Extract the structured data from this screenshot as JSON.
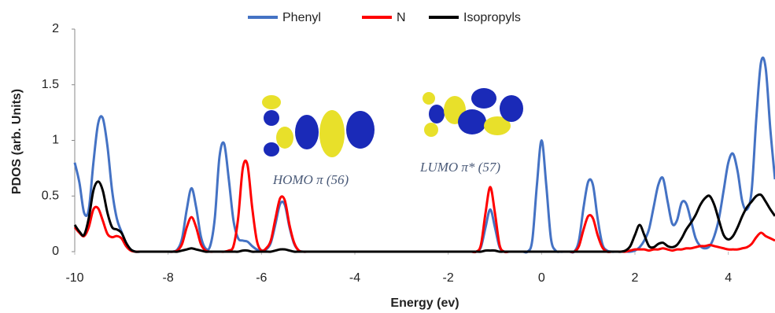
{
  "chart_data": {
    "type": "line",
    "x_label": "Energy (ev)",
    "y_label": "PDOS (arb. Units)",
    "annotations": [
      "HOMO π (56)",
      "LUMO π* (57)"
    ],
    "xlim": [
      -10,
      5
    ],
    "xticks": [
      -10,
      -8,
      -6,
      -4,
      -2,
      0,
      2,
      4
    ],
    "ylim": [
      0,
      2
    ],
    "yticks": [
      0,
      0.5,
      1,
      1.5,
      2
    ],
    "legend": "top",
    "x": [
      -10,
      -9.9,
      -9.8,
      -9.7,
      -9.6,
      -9.5,
      -9.4,
      -9.3,
      -9.2,
      -9.1,
      -9,
      -8.9,
      -8.8,
      -8.7,
      -8.6,
      -8.5,
      -8.4,
      -8.3,
      -8.2,
      -8.1,
      -8,
      -7.9,
      -7.8,
      -7.7,
      -7.6,
      -7.5,
      -7.4,
      -7.3,
      -7.2,
      -7.1,
      -7,
      -6.9,
      -6.8,
      -6.7,
      -6.6,
      -6.5,
      -6.4,
      -6.3,
      -6.2,
      -6.1,
      -6,
      -5.9,
      -5.8,
      -5.7,
      -5.6,
      -5.5,
      -5.4,
      -5.3,
      -5.2,
      -5.1,
      -5,
      -4.9,
      -4.8,
      -4.7,
      -4.6,
      -4.5,
      -4.4,
      -4.3,
      -4.2,
      -4.1,
      -4,
      -3.9,
      -3.8,
      -3.7,
      -3.6,
      -3.5,
      -3.4,
      -3.3,
      -3.2,
      -3.1,
      -3,
      -2.9,
      -2.8,
      -2.7,
      -2.6,
      -2.5,
      -2.4,
      -2.3,
      -2.2,
      -2.1,
      -2,
      -1.9,
      -1.8,
      -1.7,
      -1.6,
      -1.5,
      -1.4,
      -1.3,
      -1.2,
      -1.1,
      -1,
      -0.9,
      -0.8,
      -0.7,
      -0.6,
      -0.5,
      -0.4,
      -0.3,
      -0.2,
      -0.1,
      0,
      0.1,
      0.2,
      0.3,
      0.4,
      0.5,
      0.6,
      0.7,
      0.8,
      0.9,
      1,
      1.1,
      1.2,
      1.3,
      1.4,
      1.5,
      1.6,
      1.7,
      1.8,
      1.9,
      2,
      2.1,
      2.2,
      2.3,
      2.4,
      2.5,
      2.6,
      2.7,
      2.8,
      2.9,
      3,
      3.1,
      3.2,
      3.3,
      3.4,
      3.5,
      3.6,
      3.7,
      3.8,
      3.9,
      4,
      4.1,
      4.2,
      4.3,
      4.4,
      4.5,
      4.6,
      4.7,
      4.8,
      4.9,
      5
    ],
    "series": [
      {
        "name": "Phenyl",
        "color": "#4472c4",
        "values": [
          0.8,
          0.62,
          0.35,
          0.38,
          0.8,
          1.15,
          1.2,
          0.95,
          0.55,
          0.3,
          0.18,
          0.08,
          0.02,
          0,
          0,
          0,
          0,
          0,
          0,
          0,
          0,
          0,
          0.02,
          0.12,
          0.38,
          0.57,
          0.4,
          0.14,
          0.03,
          0.05,
          0.3,
          0.85,
          0.97,
          0.65,
          0.28,
          0.12,
          0.1,
          0.09,
          0.05,
          0.02,
          0.01,
          0.02,
          0.08,
          0.25,
          0.43,
          0.42,
          0.22,
          0.07,
          0.01,
          0,
          0,
          0,
          0,
          0,
          0,
          0,
          0,
          0,
          0,
          0,
          0,
          0,
          0,
          0,
          0,
          0,
          0,
          0,
          0,
          0,
          0,
          0,
          0,
          0,
          0,
          0,
          0,
          0,
          0,
          0,
          0,
          0,
          0,
          0,
          0,
          0,
          0,
          0.04,
          0.22,
          0.38,
          0.22,
          0.04,
          0,
          0,
          0,
          0,
          0,
          0,
          0.1,
          0.6,
          1,
          0.6,
          0.12,
          0.01,
          0,
          0,
          0,
          0,
          0.1,
          0.4,
          0.63,
          0.6,
          0.3,
          0.07,
          0.01,
          0,
          0,
          0,
          0,
          0,
          0.01,
          0.04,
          0.1,
          0.2,
          0.4,
          0.6,
          0.66,
          0.45,
          0.25,
          0.28,
          0.44,
          0.43,
          0.28,
          0.12,
          0.05,
          0.03,
          0.05,
          0.14,
          0.3,
          0.55,
          0.8,
          0.88,
          0.72,
          0.45,
          0.38,
          0.55,
          1.2,
          1.7,
          1.65,
          1.1,
          0.65
        ]
      },
      {
        "name": "N",
        "color": "#ff0000",
        "values": [
          0.22,
          0.17,
          0.14,
          0.22,
          0.38,
          0.39,
          0.28,
          0.16,
          0.13,
          0.14,
          0.12,
          0.05,
          0.01,
          0,
          0,
          0,
          0,
          0,
          0,
          0,
          0,
          0,
          0.01,
          0.07,
          0.22,
          0.31,
          0.22,
          0.07,
          0.01,
          0,
          0,
          0,
          0,
          0.01,
          0.05,
          0.3,
          0.75,
          0.78,
          0.4,
          0.1,
          0.01,
          0.03,
          0.1,
          0.3,
          0.48,
          0.46,
          0.24,
          0.08,
          0.01,
          0,
          0,
          0,
          0,
          0,
          0,
          0,
          0,
          0,
          0,
          0,
          0,
          0,
          0,
          0,
          0,
          0,
          0,
          0,
          0,
          0,
          0,
          0,
          0,
          0,
          0,
          0,
          0,
          0,
          0,
          0,
          0,
          0,
          0,
          0,
          0,
          0,
          0,
          0.06,
          0.35,
          0.58,
          0.35,
          0.06,
          0,
          0,
          0,
          0,
          0,
          0,
          0,
          0,
          0,
          0,
          0,
          0,
          0,
          0,
          0,
          0,
          0.05,
          0.2,
          0.32,
          0.3,
          0.15,
          0.04,
          0,
          0,
          0,
          0,
          0,
          0.01,
          0.02,
          0.02,
          0.02,
          0.01,
          0.02,
          0.02,
          0.03,
          0.02,
          0.01,
          0.02,
          0.02,
          0.03,
          0.03,
          0.04,
          0.05,
          0.05,
          0.06,
          0.05,
          0.04,
          0.03,
          0.02,
          0.02,
          0.02,
          0.03,
          0.04,
          0.07,
          0.13,
          0.17,
          0.14,
          0.12,
          0.1
        ]
      },
      {
        "name": "Isopropyls",
        "color": "#000000",
        "values": [
          0.24,
          0.18,
          0.15,
          0.3,
          0.55,
          0.63,
          0.55,
          0.35,
          0.22,
          0.2,
          0.17,
          0.08,
          0.02,
          0,
          0,
          0,
          0,
          0,
          0,
          0,
          0,
          0,
          0,
          0.01,
          0.02,
          0.03,
          0.02,
          0.01,
          0,
          0,
          0,
          0,
          0,
          0,
          0,
          0,
          0.01,
          0.01,
          0,
          0,
          0,
          0,
          0,
          0.01,
          0.02,
          0.02,
          0.01,
          0,
          0,
          0,
          0,
          0,
          0,
          0,
          0,
          0,
          0,
          0,
          0,
          0,
          0,
          0,
          0,
          0,
          0,
          0,
          0,
          0,
          0,
          0,
          0,
          0,
          0,
          0,
          0,
          0,
          0,
          0,
          0,
          0,
          0,
          0,
          0,
          0,
          0,
          0,
          0,
          0,
          0.01,
          0.01,
          0.01,
          0,
          0,
          0,
          0,
          0,
          0,
          0,
          0,
          0,
          0,
          0,
          0,
          0,
          0,
          0,
          0,
          0,
          0,
          0,
          0,
          0,
          0,
          0,
          0,
          0,
          0,
          0,
          0.01,
          0.05,
          0.15,
          0.24,
          0.15,
          0.05,
          0.04,
          0.07,
          0.08,
          0.05,
          0.04,
          0.06,
          0.12,
          0.2,
          0.26,
          0.33,
          0.42,
          0.48,
          0.5,
          0.42,
          0.28,
          0.15,
          0.11,
          0.14,
          0.22,
          0.32,
          0.4,
          0.45,
          0.5,
          0.51,
          0.45,
          0.38,
          0.32
        ]
      }
    ]
  }
}
